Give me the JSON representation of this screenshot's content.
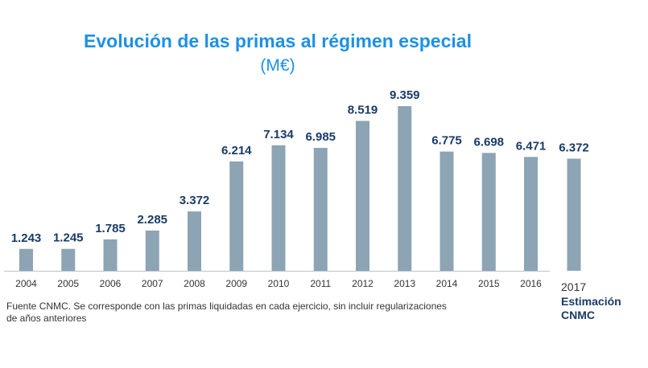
{
  "chart_data": {
    "type": "bar",
    "title": "Evolución de las primas al régimen especial",
    "subtitle": "(M€)",
    "categories": [
      "2004",
      "2005",
      "2006",
      "2007",
      "2008",
      "2009",
      "2010",
      "2011",
      "2012",
      "2013",
      "2014",
      "2015",
      "2016",
      "2017"
    ],
    "values": [
      1243,
      1245,
      1785,
      2285,
      3372,
      6214,
      7134,
      6985,
      8519,
      9359,
      6775,
      6698,
      6471,
      6372
    ],
    "value_labels": [
      "1.243",
      "1.245",
      "1.785",
      "2.285",
      "3.372",
      "6.214",
      "7.134",
      "6.985",
      "8.519",
      "9.359",
      "6.775",
      "6.698",
      "6.471",
      "6.372"
    ],
    "estimate": {
      "year": "2017",
      "label_line1": "Estimación",
      "label_line2": "CNMC"
    },
    "ylim": [
      0,
      10000
    ],
    "grid": false,
    "colors": {
      "bar": "#8ca4b3",
      "value_label": "#1a3b66",
      "title": "#1e90e6",
      "axis": "#b8c4cc"
    }
  },
  "footnote_line1": "Fuente CNMC. Se corresponde con las primas liquidadas en cada ejercicio, sin incluir regularizaciones",
  "footnote_line2": "de años anteriores"
}
